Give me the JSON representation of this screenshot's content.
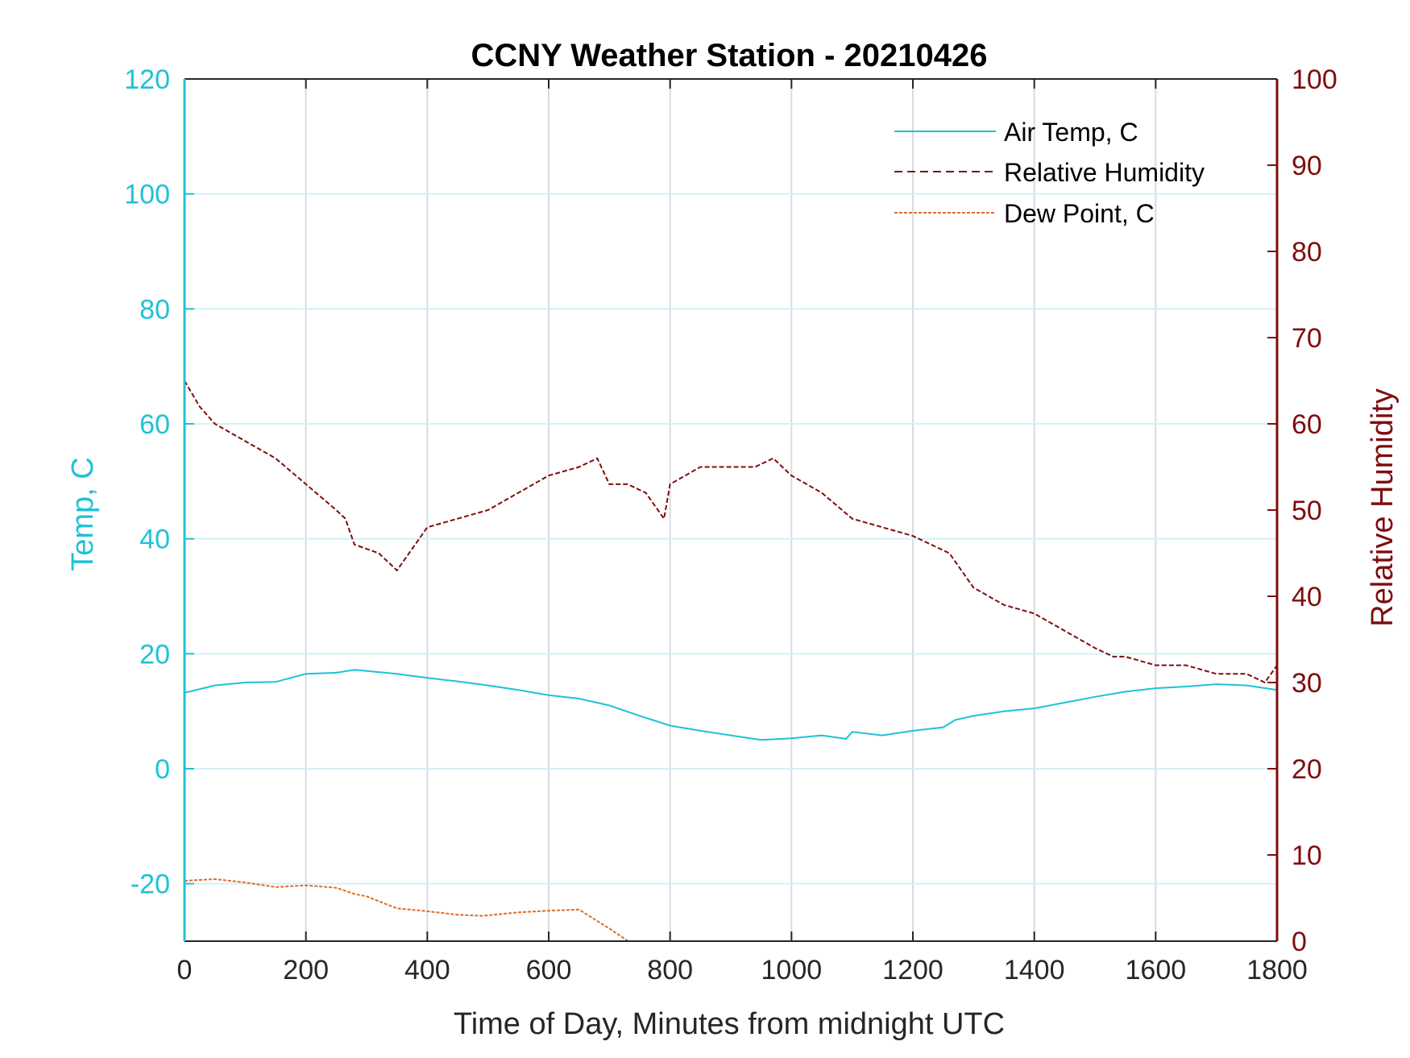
{
  "chart_data": {
    "type": "line",
    "title": "CCNY Weather Station - 20210426",
    "xlabel": "Time of Day, Minutes from midnight UTC",
    "ylabel_left": "Temp, C",
    "ylabel_right": "Relative Humidity",
    "xlim": [
      0,
      1800
    ],
    "ylim_left": [
      -30,
      120
    ],
    "ylim_right": [
      0,
      100
    ],
    "x_ticks": [
      "0",
      "200",
      "400",
      "600",
      "800",
      "1000",
      "1200",
      "1400",
      "1600",
      "1800"
    ],
    "y_left_ticks": [
      "-20",
      "0",
      "20",
      "40",
      "60",
      "80",
      "100",
      "120"
    ],
    "y_right_ticks": [
      "0",
      "10",
      "20",
      "30",
      "40",
      "50",
      "60",
      "70",
      "80",
      "90",
      "100"
    ],
    "grid": true,
    "legend_position": "top-right",
    "colors": {
      "temp": "#1fc2d6",
      "rh": "#7f0d0d",
      "dew": "#e06a2a"
    },
    "series": [
      {
        "name": "Air Temp, C",
        "axis": "left",
        "style": "solid",
        "x": [
          0,
          50,
          100,
          150,
          200,
          250,
          280,
          350,
          400,
          450,
          500,
          550,
          600,
          650,
          700,
          750,
          800,
          850,
          900,
          950,
          1000,
          1050,
          1090,
          1100,
          1150,
          1200,
          1250,
          1270,
          1300,
          1350,
          1400,
          1450,
          1500,
          1550,
          1600,
          1650,
          1700,
          1750,
          1800
        ],
        "y": [
          13.2,
          14.5,
          15.0,
          15.1,
          16.5,
          16.7,
          17.2,
          16.5,
          15.8,
          15.2,
          14.5,
          13.7,
          12.8,
          12.2,
          11.0,
          9.2,
          7.5,
          6.6,
          5.8,
          5.0,
          5.3,
          5.8,
          5.2,
          6.4,
          5.8,
          6.6,
          7.2,
          8.5,
          9.2,
          10.0,
          10.5,
          11.5,
          12.5,
          13.4,
          14.0,
          14.3,
          14.7,
          14.5,
          13.7
        ]
      },
      {
        "name": "Relative Humidity",
        "axis": "right",
        "style": "dashed",
        "x": [
          0,
          25,
          50,
          100,
          150,
          200,
          250,
          265,
          280,
          320,
          350,
          400,
          450,
          500,
          550,
          600,
          650,
          680,
          700,
          730,
          760,
          790,
          800,
          850,
          900,
          940,
          970,
          1000,
          1050,
          1100,
          1150,
          1200,
          1230,
          1260,
          1280,
          1300,
          1350,
          1400,
          1450,
          1500,
          1530,
          1550,
          1600,
          1650,
          1700,
          1750,
          1780,
          1800
        ],
        "y": [
          65,
          62,
          60,
          58,
          56,
          53,
          50,
          49,
          46,
          45,
          43,
          48,
          49,
          50,
          52,
          54,
          55,
          56,
          53,
          53,
          52,
          49,
          53,
          55,
          55,
          55,
          56,
          54,
          52,
          49,
          48,
          47,
          46,
          45,
          43,
          41,
          39,
          38,
          36,
          34,
          33,
          33,
          32,
          32,
          31,
          31,
          30,
          32
        ]
      },
      {
        "name": "Dew Point, C",
        "axis": "left",
        "style": "dashed",
        "x": [
          0,
          50,
          100,
          150,
          200,
          250,
          280,
          300,
          350,
          400,
          450,
          490,
          550,
          600,
          650,
          680,
          700,
          730
        ],
        "y": [
          -19.5,
          -19.2,
          -19.8,
          -20.6,
          -20.3,
          -20.7,
          -21.8,
          -22.2,
          -24.3,
          -24.8,
          -25.4,
          -25.6,
          -25.0,
          -24.7,
          -24.5,
          -26.5,
          -27.8,
          -29.9
        ]
      }
    ]
  }
}
